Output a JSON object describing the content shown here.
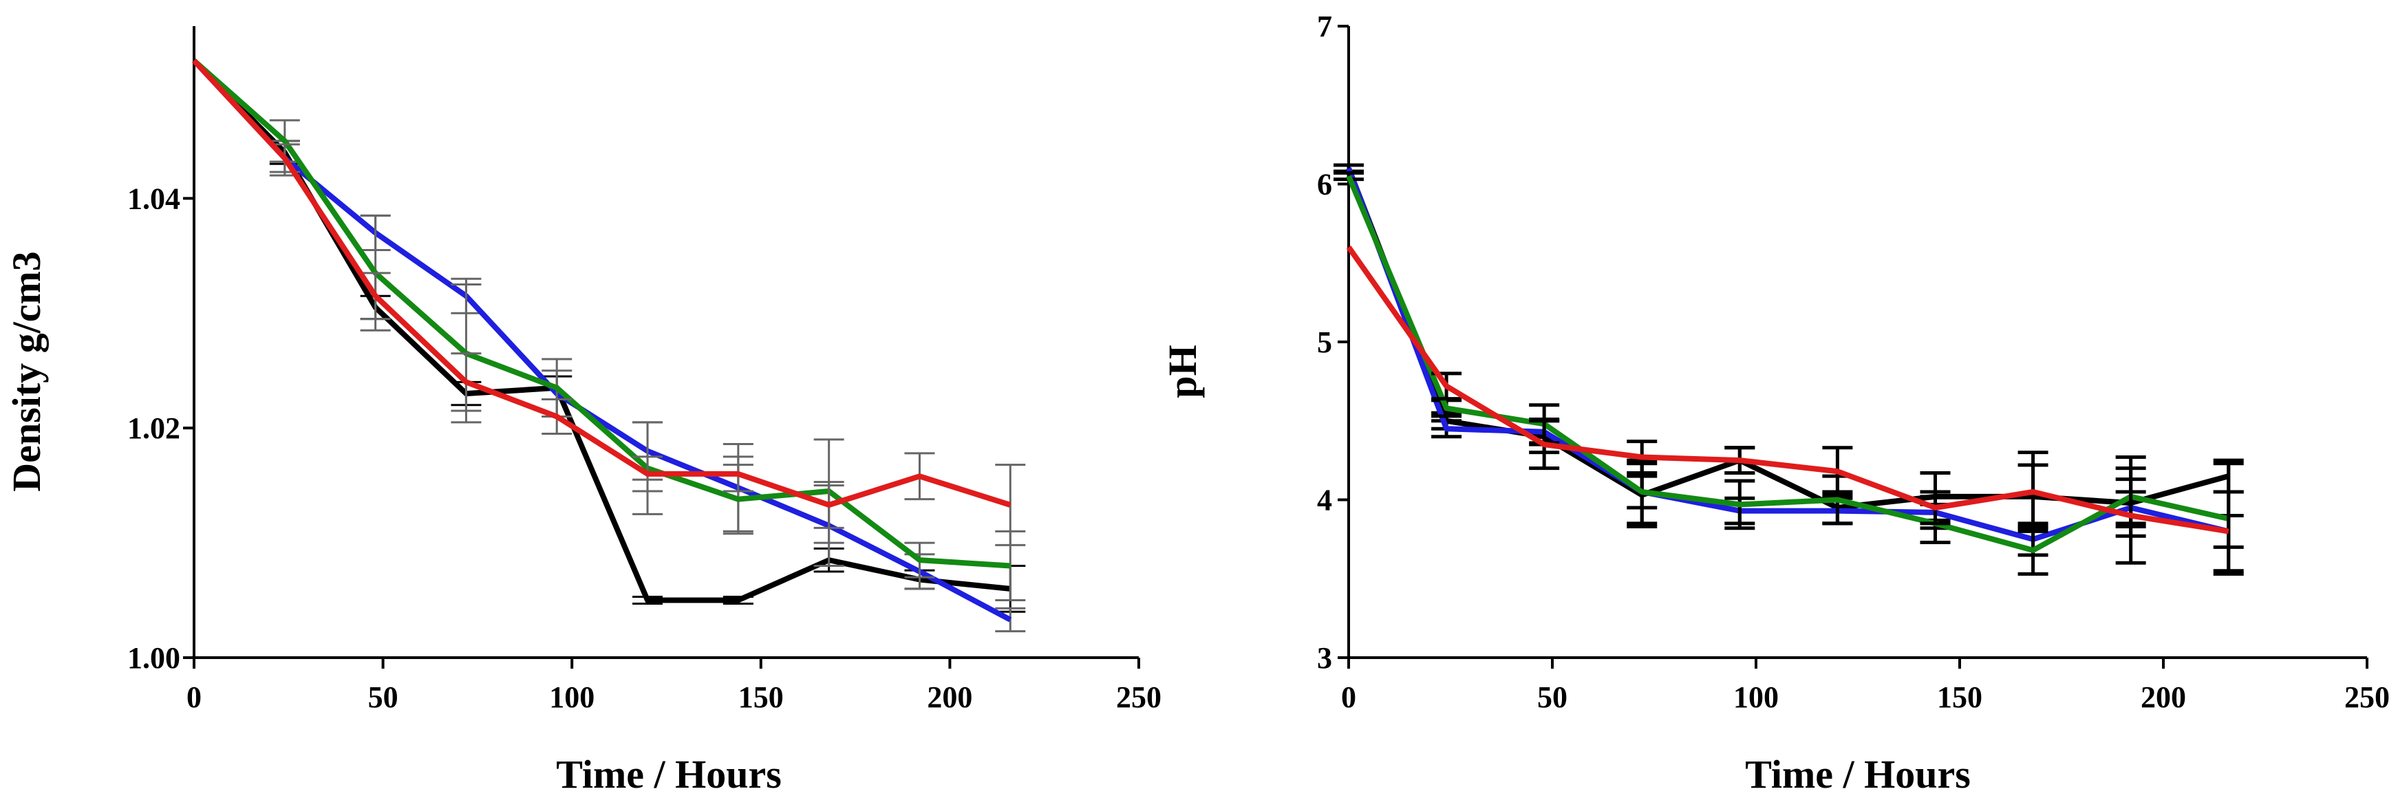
{
  "colors": {
    "black": "#000000",
    "blue": "#1f1fe0",
    "green": "#138a13",
    "red": "#e01c1c",
    "errbar": "#777777"
  },
  "chart_data": [
    {
      "type": "line",
      "title": "",
      "xlabel": "Time / Hours",
      "ylabel": "Density g/cm3",
      "xlim": [
        0,
        250
      ],
      "ylim": [
        1.0,
        1.055
      ],
      "x_ticks": [
        "0",
        "50",
        "100",
        "150",
        "200",
        "250"
      ],
      "y_ticks": [
        "1.00",
        "1.02",
        "1.04"
      ],
      "x": [
        0,
        24,
        48,
        72,
        96,
        120,
        144,
        168,
        192,
        216
      ],
      "series": [
        {
          "name": "black",
          "color": "#000000",
          "values": [
            1.052,
            1.044,
            1.0305,
            1.023,
            1.0235,
            1.005,
            1.005,
            1.0085,
            1.0068,
            1.006
          ],
          "errors": [
            0,
            0.001,
            0.001,
            0.001,
            0.001,
            0.0003,
            0.0003,
            0.001,
            0.0008,
            0.002
          ]
        },
        {
          "name": "blue",
          "color": "#1f1fe0",
          "values": [
            1.052,
            1.0435,
            1.037,
            1.0315,
            1.023,
            1.018,
            1.0148,
            1.0115,
            1.0075,
            1.0033
          ],
          "errors": [
            0,
            0.0015,
            0.0015,
            0.0015,
            0.002,
            0.0025,
            0.0038,
            0.0035,
            0.0015,
            0.001
          ]
        },
        {
          "name": "green",
          "color": "#138a13",
          "values": [
            1.052,
            1.045,
            1.0335,
            1.0265,
            1.0235,
            1.0165,
            1.0138,
            1.0145,
            1.0085,
            1.008
          ],
          "errors": [
            0,
            0.0018,
            0.005,
            0.006,
            0.0025,
            0.004,
            0.003,
            0.0045,
            0.0015,
            0.003
          ]
        },
        {
          "name": "red",
          "color": "#e01c1c",
          "values": [
            1.052,
            1.0435,
            1.0315,
            1.024,
            1.021,
            1.016,
            1.016,
            1.0133,
            1.0158,
            1.0133
          ],
          "errors": [
            0,
            0.0012,
            0.002,
            0.0025,
            0.0015,
            0.0015,
            0.0015,
            0.002,
            0.002,
            0.0035
          ]
        }
      ]
    },
    {
      "type": "line",
      "title": "",
      "xlabel": "Time / Hours",
      "ylabel": "pH",
      "xlim": [
        0,
        250
      ],
      "ylim": [
        3,
        7
      ],
      "x_ticks": [
        "0",
        "50",
        "100",
        "150",
        "200",
        "250"
      ],
      "y_ticks": [
        "3",
        "4",
        "5",
        "6",
        "7"
      ],
      "x": [
        0,
        24,
        48,
        72,
        96,
        120,
        144,
        168,
        192,
        216
      ],
      "series": [
        {
          "name": "black",
          "color": "#000000",
          "values": [
            6.1,
            4.5,
            4.4,
            4.03,
            4.25,
            3.95,
            4.02,
            4.02,
            3.98,
            4.15
          ],
          "errors": [
            0.02,
            0.05,
            0.1,
            0.2,
            0.08,
            0.1,
            0.15,
            0.2,
            0.15,
            0.1
          ]
        },
        {
          "name": "blue",
          "color": "#1f1fe0",
          "values": [
            6.1,
            4.45,
            4.43,
            4.05,
            3.93,
            3.93,
            3.92,
            3.75,
            3.95,
            3.8
          ],
          "errors": [
            0.02,
            0.05,
            0.08,
            0.1,
            0.08,
            0.08,
            0.1,
            0.1,
            0.1,
            0.1
          ]
        },
        {
          "name": "green",
          "color": "#138a13",
          "values": [
            6.05,
            4.58,
            4.48,
            4.05,
            3.97,
            4.0,
            3.85,
            3.68,
            4.02,
            3.88
          ],
          "errors": [
            0.02,
            0.05,
            0.12,
            0.2,
            0.15,
            0.15,
            0.12,
            0.15,
            0.25,
            0.35
          ]
        },
        {
          "name": "red",
          "color": "#e01c1c",
          "values": [
            5.6,
            4.72,
            4.35,
            4.27,
            4.25,
            4.18,
            3.95,
            4.05,
            3.9,
            3.8
          ],
          "errors": [
            0,
            0.08,
            0.15,
            0.1,
            0.08,
            0.15,
            0.1,
            0.25,
            0.3,
            0.25
          ]
        }
      ]
    }
  ]
}
